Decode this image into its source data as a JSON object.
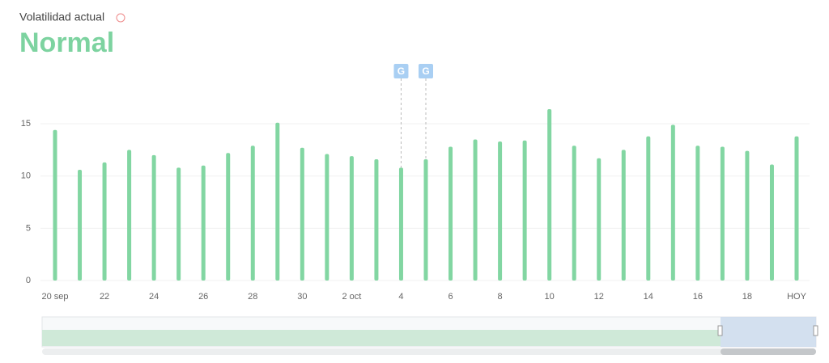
{
  "chart_data": {
    "type": "bar",
    "title": "Volatilidad actual",
    "status": "Normal",
    "categories": [
      "20 sep",
      null,
      "22",
      null,
      "24",
      null,
      "26",
      null,
      "28",
      null,
      "30",
      null,
      "2 oct",
      null,
      "4",
      null,
      "6",
      null,
      "8",
      null,
      "10",
      null,
      "12",
      null,
      "14",
      null,
      "16",
      null,
      "18",
      null,
      "HOY"
    ],
    "values": [
      14.4,
      10.6,
      11.3,
      12.5,
      12.0,
      10.8,
      11.0,
      12.2,
      12.9,
      15.1,
      12.7,
      12.1,
      11.9,
      11.6,
      10.8,
      11.6,
      12.8,
      13.5,
      13.3,
      13.4,
      16.4,
      12.9,
      11.7,
      12.5,
      13.8,
      14.9,
      12.9,
      12.8,
      12.4,
      11.1,
      13.8
    ],
    "color": "#82d6a2",
    "ylim": [
      0,
      20
    ],
    "yticks": [
      0,
      5,
      10,
      15
    ],
    "grid": true,
    "annotations": [
      {
        "category_index": 14,
        "label": "G"
      },
      {
        "category_index": 15,
        "label": "G"
      }
    ]
  }
}
